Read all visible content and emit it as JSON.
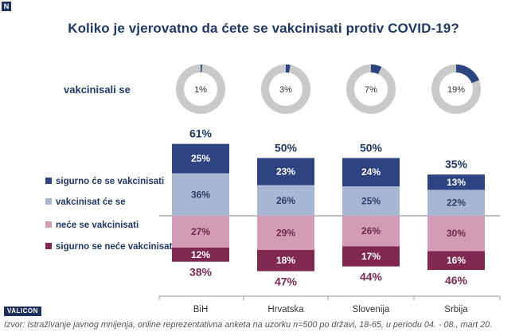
{
  "title": "Koliko je vjerovatno da ćete se vakcinisati protiv COVID-19?",
  "donut_label": "vakcinisali se",
  "legend": [
    {
      "label": "sigurno će se vakcinisati",
      "color": "#2e4482"
    },
    {
      "label": "vakcinisat će se",
      "color": "#a8b6d3"
    },
    {
      "label": "neće se vakcinisati",
      "color": "#d49bb5"
    },
    {
      "label": "sigurno se neće vakcinisati",
      "color": "#80284f"
    }
  ],
  "colors": {
    "positive_total": "#1f3864",
    "negative_total": "#7a2a52",
    "donut_filled": "#2e4482",
    "donut_empty": "#c9c9c9"
  },
  "chart_data": {
    "type": "bar",
    "stacked": "diverging",
    "categories": [
      "BiH",
      "Hrvatska",
      "Slovenija",
      "Srbija"
    ],
    "series": [
      {
        "name": "sigurno će se vakcinisati",
        "values": [
          25,
          23,
          24,
          13
        ],
        "labels": [
          "25%",
          "23%",
          "24%",
          "13%"
        ]
      },
      {
        "name": "vakcinisat će se",
        "values": [
          36,
          26,
          25,
          22
        ],
        "labels": [
          "36%",
          "26%",
          "25%",
          "22%"
        ]
      },
      {
        "name": "neće se vakcinisati",
        "values": [
          27,
          29,
          26,
          30
        ],
        "labels": [
          "27%",
          "29%",
          "26%",
          "30%"
        ]
      },
      {
        "name": "sigurno se neće vakcinisati",
        "values": [
          12,
          18,
          17,
          16
        ],
        "labels": [
          "12%",
          "18%",
          "17%",
          "16%"
        ]
      }
    ],
    "positive_totals": [
      "61%",
      "50%",
      "50%",
      "35%"
    ],
    "negative_totals": [
      "38%",
      "47%",
      "44%",
      "46%"
    ],
    "vaccinated": {
      "values": [
        1,
        3,
        7,
        19
      ],
      "labels": [
        "1%",
        "3%",
        "7%",
        "19%"
      ]
    }
  },
  "logo": "VALICON",
  "source": "Izvor: Istraživanje javnog mnijenja, online reprezentativna anketa na uzorku n=500 po državi, 18-65, u periodu 04. - 08., mart 20."
}
